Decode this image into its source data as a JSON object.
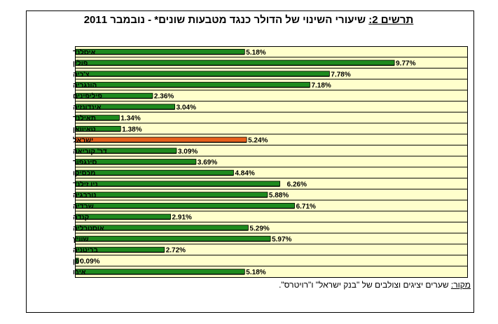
{
  "chart_data": {
    "type": "bar",
    "title_lead": "תרשים 2:",
    "title_rest": " שיעורי השינוי של הדולר כנגד מטבעות שונים* - נובמבר 2011",
    "source_lead": "מקור:",
    "source_rest": " שערים יציגים וצולבים של \"בנק ישראל\" ו\"רויטרס\".",
    "orientation": "horizontal",
    "categories": [
      "איסלנד",
      "פולין",
      "צ'כיה",
      "הונגריה",
      "פיליפינים",
      "אינדונזיה",
      "תאילנד",
      "טאיוואן",
      "ישראל",
      "דר' קוריאה",
      "סינגפור",
      "מכסיקו",
      "ניו זילנד",
      "נורבגיה",
      "שבדיה",
      "קנדה",
      "אוסטרליה",
      "שוויץ",
      "בריטניה",
      "יפן",
      "אירו"
    ],
    "values": [
      5.18,
      9.77,
      7.78,
      7.18,
      2.36,
      3.04,
      1.34,
      1.38,
      5.24,
      3.09,
      3.69,
      4.84,
      6.26,
      5.88,
      6.71,
      2.91,
      5.29,
      5.97,
      2.72,
      0.09,
      5.18
    ],
    "value_labels": [
      "5.18%",
      "9.77%",
      "7.78%",
      "7.18%",
      "2.36%",
      "3.04%",
      "1.34%",
      "1.38%",
      "5.24%",
      "3.09%",
      "3.69%",
      "4.84%",
      "6.26%",
      "5.88%",
      "6.71%",
      "2.91%",
      "5.29%",
      "5.97%",
      "2.72%",
      "0.09%",
      "5.18%"
    ],
    "highlight": "ישראל",
    "xlim": [
      0,
      12
    ],
    "grid": "horizontal",
    "legend": "none",
    "colors": {
      "bar": "#1e8a1e",
      "highlight": "#e8601c",
      "plot_bg": "#ffffcc",
      "grid": "#000000"
    }
  }
}
